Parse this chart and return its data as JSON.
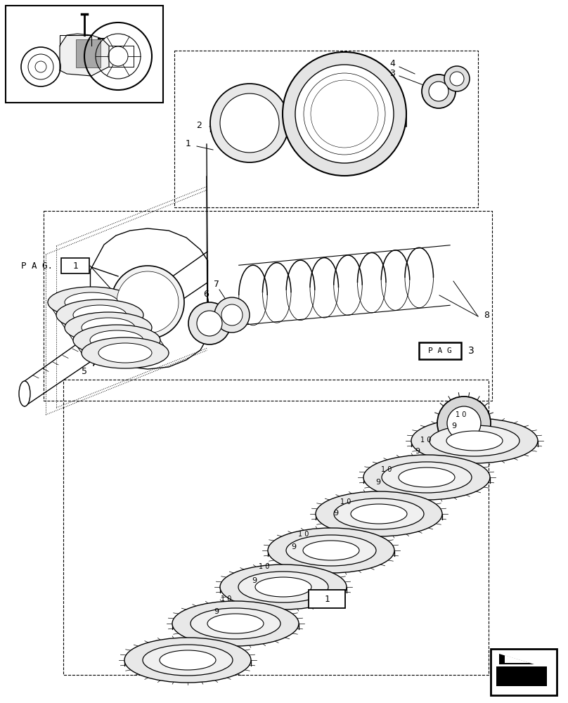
{
  "background_color": "#ffffff",
  "fig_width": 8.08,
  "fig_height": 10.0,
  "dpi": 100,
  "line_color": "#000000",
  "text_color": "#000000",
  "lw_main": 1.0,
  "lw_thin": 0.6,
  "lw_thick": 1.4,
  "font_size": 9,
  "font_size_small": 8
}
